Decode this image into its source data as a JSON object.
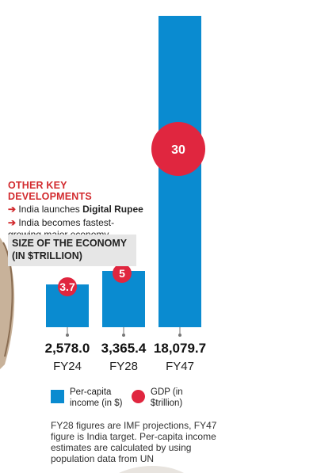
{
  "developments": {
    "title": "OTHER KEY DEVELOPMENTS",
    "items": [
      {
        "text": "India launches ",
        "bold": "Digital Rupee"
      },
      {
        "text": "India becomes fastest-growing major economy",
        "bold": ""
      }
    ]
  },
  "size_title": "SIZE OF THE ECONOMY (IN $TRILLION)",
  "legend": {
    "bar_label": "Per-capita income (in $)",
    "dot_label": "GDP (in $trillion)"
  },
  "footnote": "FY28 figures are IMF projections, FY47 figure is India target.  Per-capita income estimates  are calculated by using  population data from UN",
  "colors": {
    "bar": "#0a8bd0",
    "dot": "#e0263f"
  },
  "chart_data": {
    "type": "bar",
    "categories": [
      "FY24",
      "FY28",
      "FY47"
    ],
    "series": [
      {
        "name": "Per-capita income (in $)",
        "values": [
          2578.0,
          3365.4,
          18079.7
        ],
        "value_labels": [
          "2,578.0",
          "3,365.4",
          "18,079.7"
        ]
      },
      {
        "name": "GDP (in $trillion)",
        "values": [
          3.7,
          5,
          30
        ],
        "value_labels": [
          "3.7",
          "5",
          "30"
        ]
      }
    ],
    "title": "SIZE OF THE ECONOMY (IN $TRILLION)",
    "xlabel": "",
    "ylabel": "",
    "ylim": [
      0,
      18079.7
    ]
  }
}
